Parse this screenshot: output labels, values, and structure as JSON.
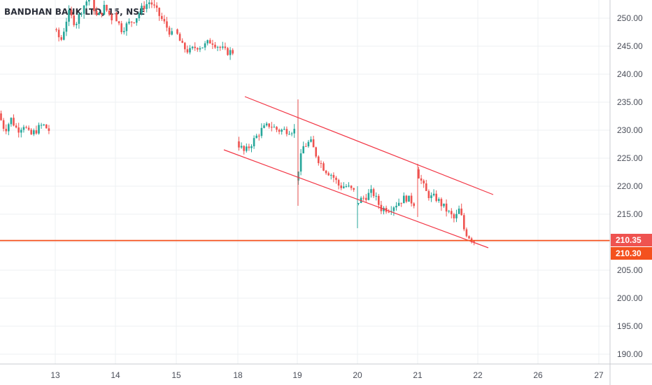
{
  "chart_data": {
    "type": "candlestick",
    "title": "BANDHAN BANK LTD, 15, NSE",
    "ylim": [
      187.5,
      254
    ],
    "y_ticks": [
      190,
      195,
      200,
      205,
      210,
      215,
      220,
      225,
      230,
      235,
      240,
      245,
      250
    ],
    "y_tick_labels": [
      "190.00",
      "195.00",
      "200.00",
      "205.00",
      "210.00",
      "215.00",
      "220.00",
      "225.00",
      "230.00",
      "235.00",
      "240.00",
      "245.00",
      "250.00"
    ],
    "x_tick_labels": [
      "13",
      "14",
      "15",
      "18",
      "19",
      "20",
      "21",
      "22",
      "26",
      "27"
    ],
    "grid": true,
    "colors": {
      "up": "#26a69a",
      "down": "#ef5350",
      "hline": "#f4511e",
      "channel": "#f23645"
    },
    "price_labels": [
      {
        "value": 210.35,
        "text": "210.35",
        "color": "#ef5350"
      },
      {
        "value": 210.3,
        "text": "210.30",
        "color": "#f4511e"
      }
    ],
    "horizontal_line": 210.3,
    "channel_upper": [
      {
        "x": "18",
        "y": 236.0
      },
      {
        "x": "22",
        "y": 218.5
      }
    ],
    "channel_lower": [
      {
        "x": "17.8",
        "y": 226.5
      },
      {
        "x": "22",
        "y": 209.0
      }
    ],
    "sessions": [
      {
        "day": "12",
        "path": [
          233,
          230,
          232,
          230,
          231,
          229,
          230,
          231,
          230
        ]
      },
      {
        "day": "13",
        "path": [
          248,
          246,
          251,
          249,
          252,
          254,
          250,
          252,
          250
        ]
      },
      {
        "day": "14",
        "path": [
          251,
          248,
          249,
          250,
          252,
          253,
          251,
          249,
          247
        ]
      },
      {
        "day": "15",
        "path": [
          248,
          245,
          244,
          245,
          245,
          246,
          245,
          244,
          244
        ]
      },
      {
        "day": "18",
        "path": [
          228,
          226,
          228,
          230,
          231,
          230,
          230,
          230
        ]
      },
      {
        "day": "19",
        "path": [
          221,
          227,
          228,
          225,
          223,
          222,
          220,
          220,
          219
        ]
      },
      {
        "day": "20",
        "path": [
          217,
          218,
          219,
          216,
          216,
          217,
          218,
          217
        ]
      },
      {
        "day": "21",
        "path": [
          223,
          221,
          219,
          218,
          218,
          217,
          216,
          215,
          214,
          216,
          212,
          211,
          210.3
        ]
      }
    ]
  }
}
